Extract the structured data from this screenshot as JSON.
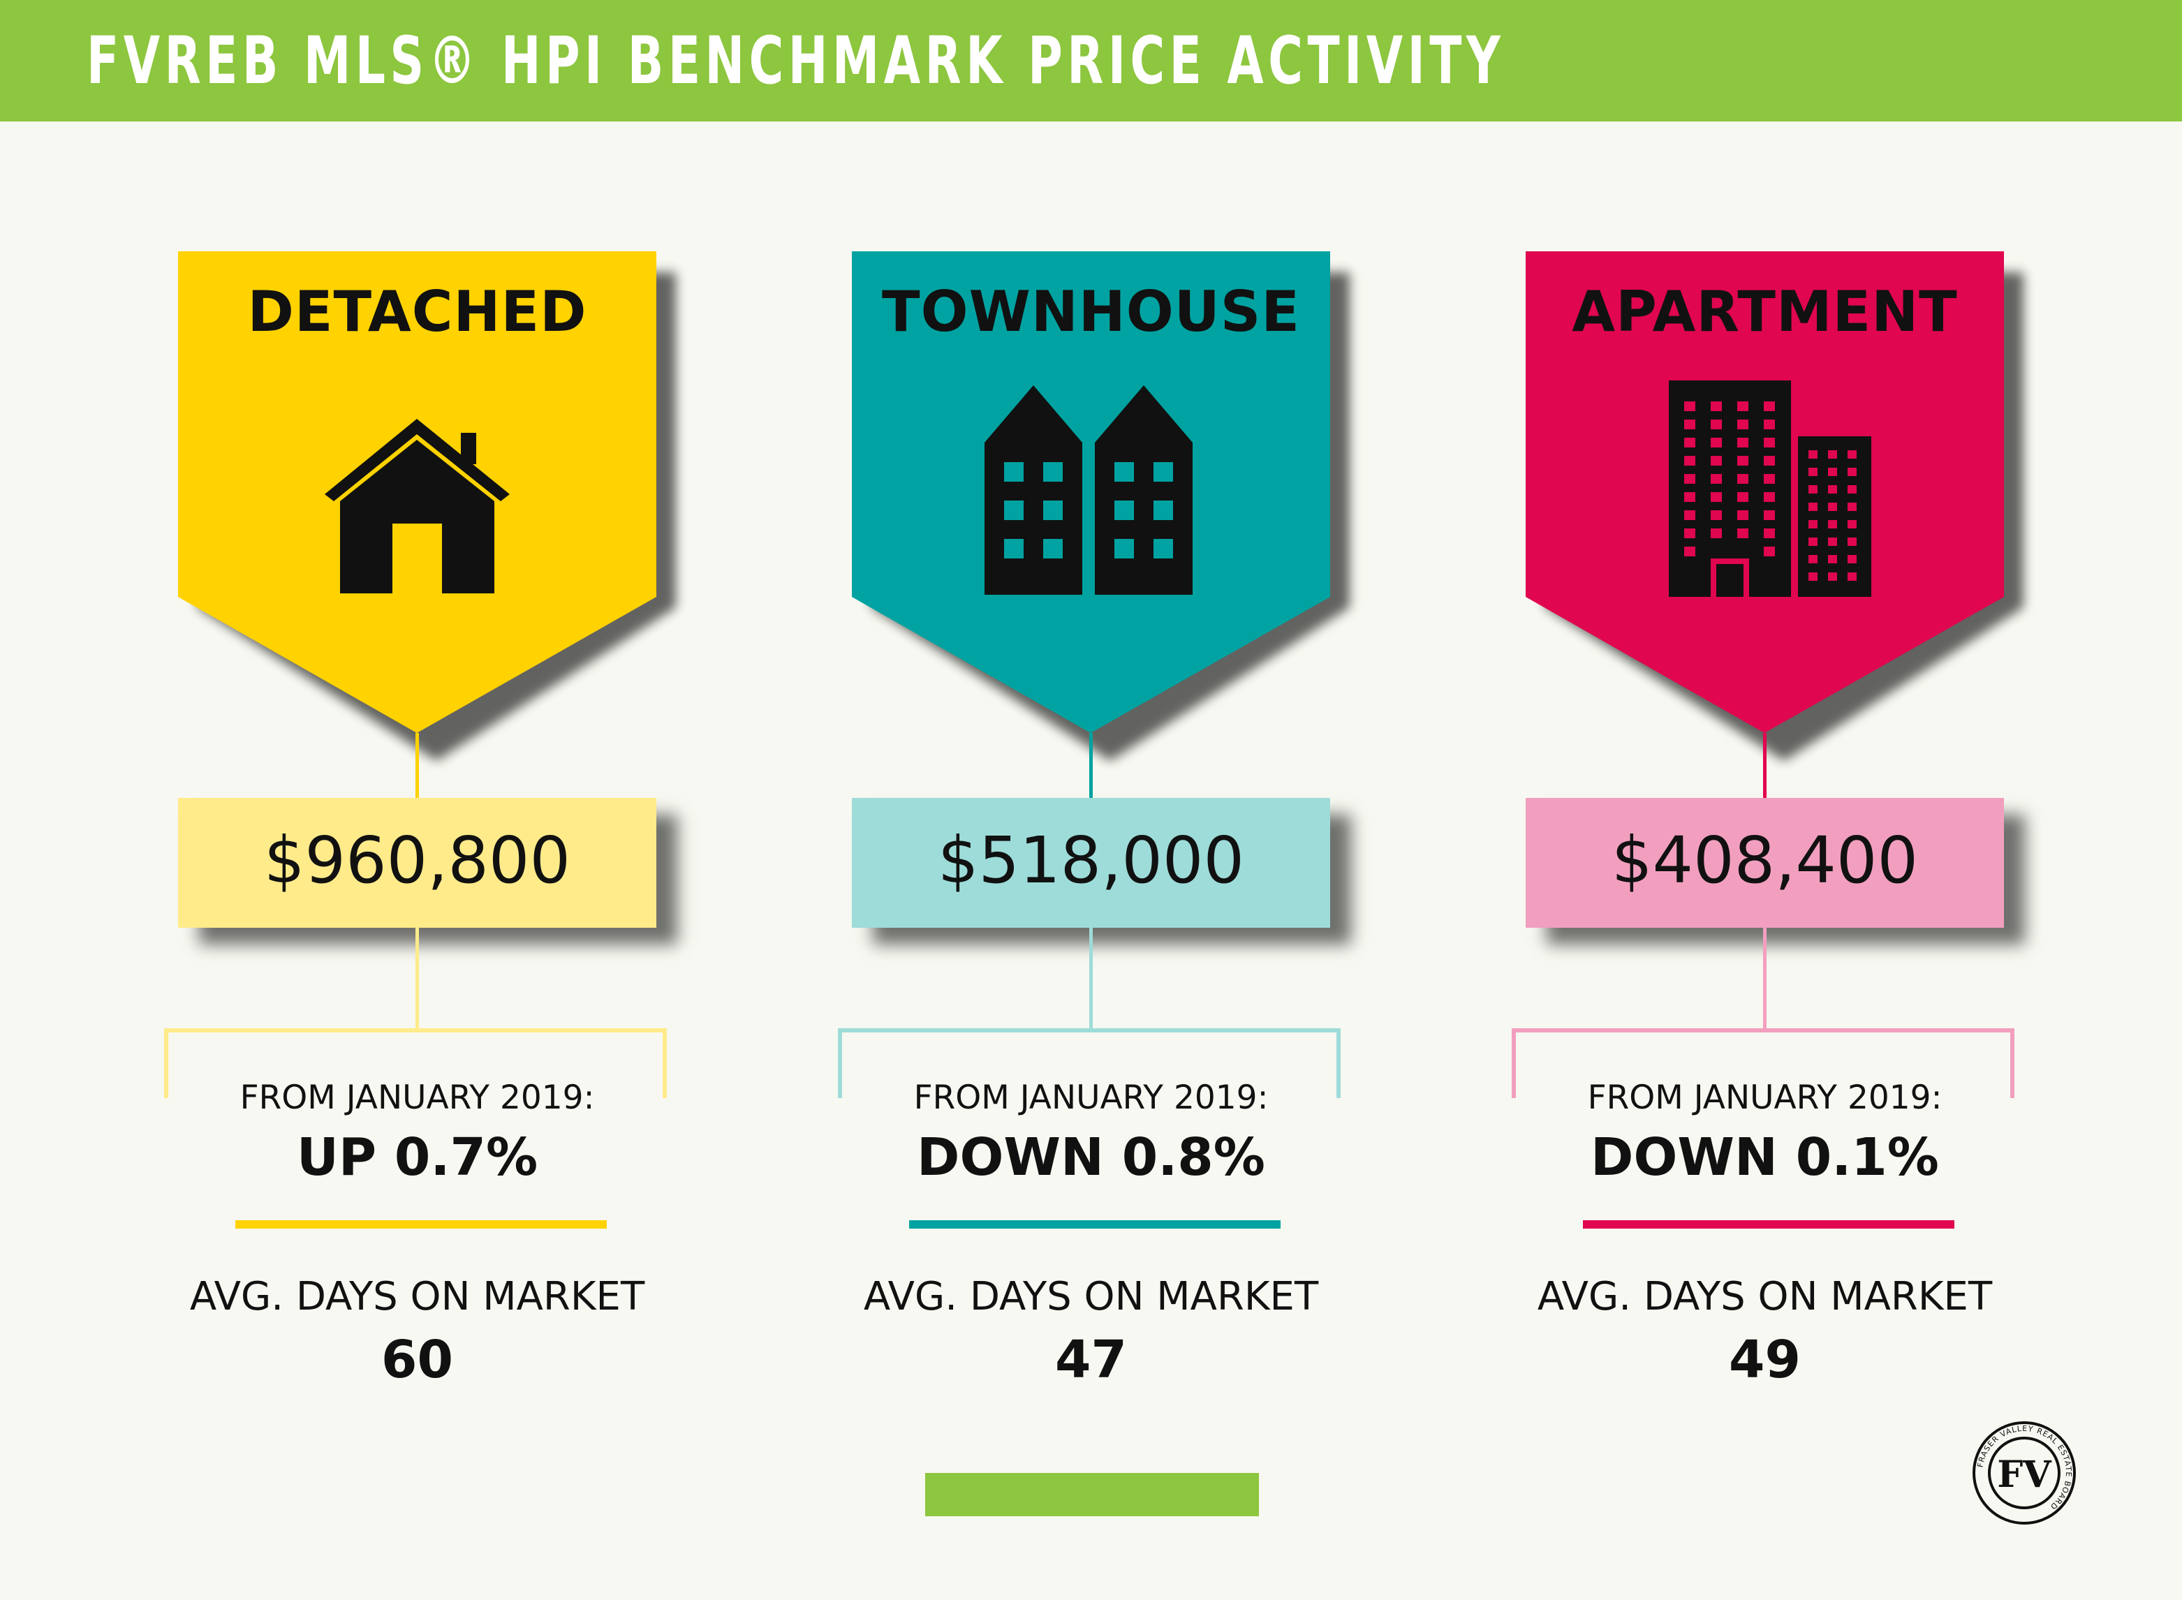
{
  "header": {
    "title": "FVREB MLS® HPI BENCHMARK PRICE ACTIVITY",
    "bg_color": "#8dc63f"
  },
  "categories": [
    {
      "id": "detached",
      "label": "DETACHED",
      "icon": "house-icon",
      "price": "$960,800",
      "from_label": "FROM JANUARY 2019:",
      "change": "UP 0.7%",
      "dom_label": "AVG. DAYS ON MARKET",
      "dom_value": "60",
      "colors": {
        "primary": "#ffd200",
        "light": "#ffeb8a"
      }
    },
    {
      "id": "townhouse",
      "label": "TOWNHOUSE",
      "icon": "townhouse-icon",
      "price": "$518,000",
      "from_label": "FROM JANUARY 2019:",
      "change": "DOWN 0.8%",
      "dom_label": "AVG. DAYS ON MARKET",
      "dom_value": "47",
      "colors": {
        "primary": "#00a3a1",
        "light": "#9ddcd9"
      }
    },
    {
      "id": "apartment",
      "label": "APARTMENT",
      "icon": "apartment-building-icon",
      "price": "$408,400",
      "from_label": "FROM JANUARY 2019:",
      "change": "DOWN 0.1%",
      "dom_label": "AVG. DAYS ON MARKET",
      "dom_value": "49",
      "colors": {
        "primary": "#e0064f",
        "light": "#f29fbf"
      }
    }
  ],
  "logo": {
    "ring_text": "FRASER VALLEY REAL ESTATE BOARD",
    "monogram": "FV"
  },
  "footer": {
    "bar_color": "#8dc63f"
  }
}
